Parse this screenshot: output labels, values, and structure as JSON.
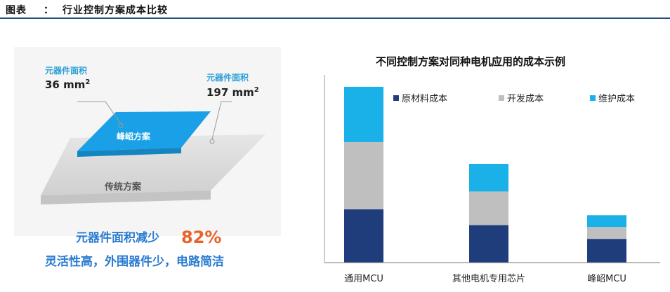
{
  "header": {
    "label": "图表",
    "sep": "：",
    "title": "行业控制方案成本比较"
  },
  "colors": {
    "accent": "#1f4e79",
    "new_plate": "#1aa0e6",
    "old_plate": "#d9d9d9",
    "orange": "#e8632b",
    "blue_text": "#2a7bd1"
  },
  "left_figure": {
    "callout_new": {
      "label": "元器件面积",
      "value": "36 mm",
      "sup": "2"
    },
    "callout_old": {
      "label": "元器件面积",
      "value": "197 mm",
      "sup": "2"
    },
    "plate_new_label": "峰岹方案",
    "plate_old_label": "传统方案",
    "headline_text": "元器件面积减少",
    "headline_pct": "82%",
    "subline": "灵活性高，外围器件少，电路简洁"
  },
  "chart_data": {
    "type": "bar",
    "stacked": true,
    "title": "不同控制方案对同种电机应用的成本示例",
    "categories": [
      "通用MCU",
      "其他电机专用芯片",
      "峰岹MCU"
    ],
    "series": [
      {
        "name": "原材料成本",
        "color": "#1f3d7a",
        "values": [
          2.7,
          1.9,
          1.2
        ]
      },
      {
        "name": "开发成本",
        "color": "#bfbfbf",
        "values": [
          3.4,
          1.7,
          0.6
        ]
      },
      {
        "name": "维护成本",
        "color": "#1ab0e8",
        "values": [
          2.8,
          1.4,
          0.6
        ]
      }
    ],
    "ylim": [
      0,
      9.5
    ],
    "legend": "top-right",
    "grid": false
  }
}
